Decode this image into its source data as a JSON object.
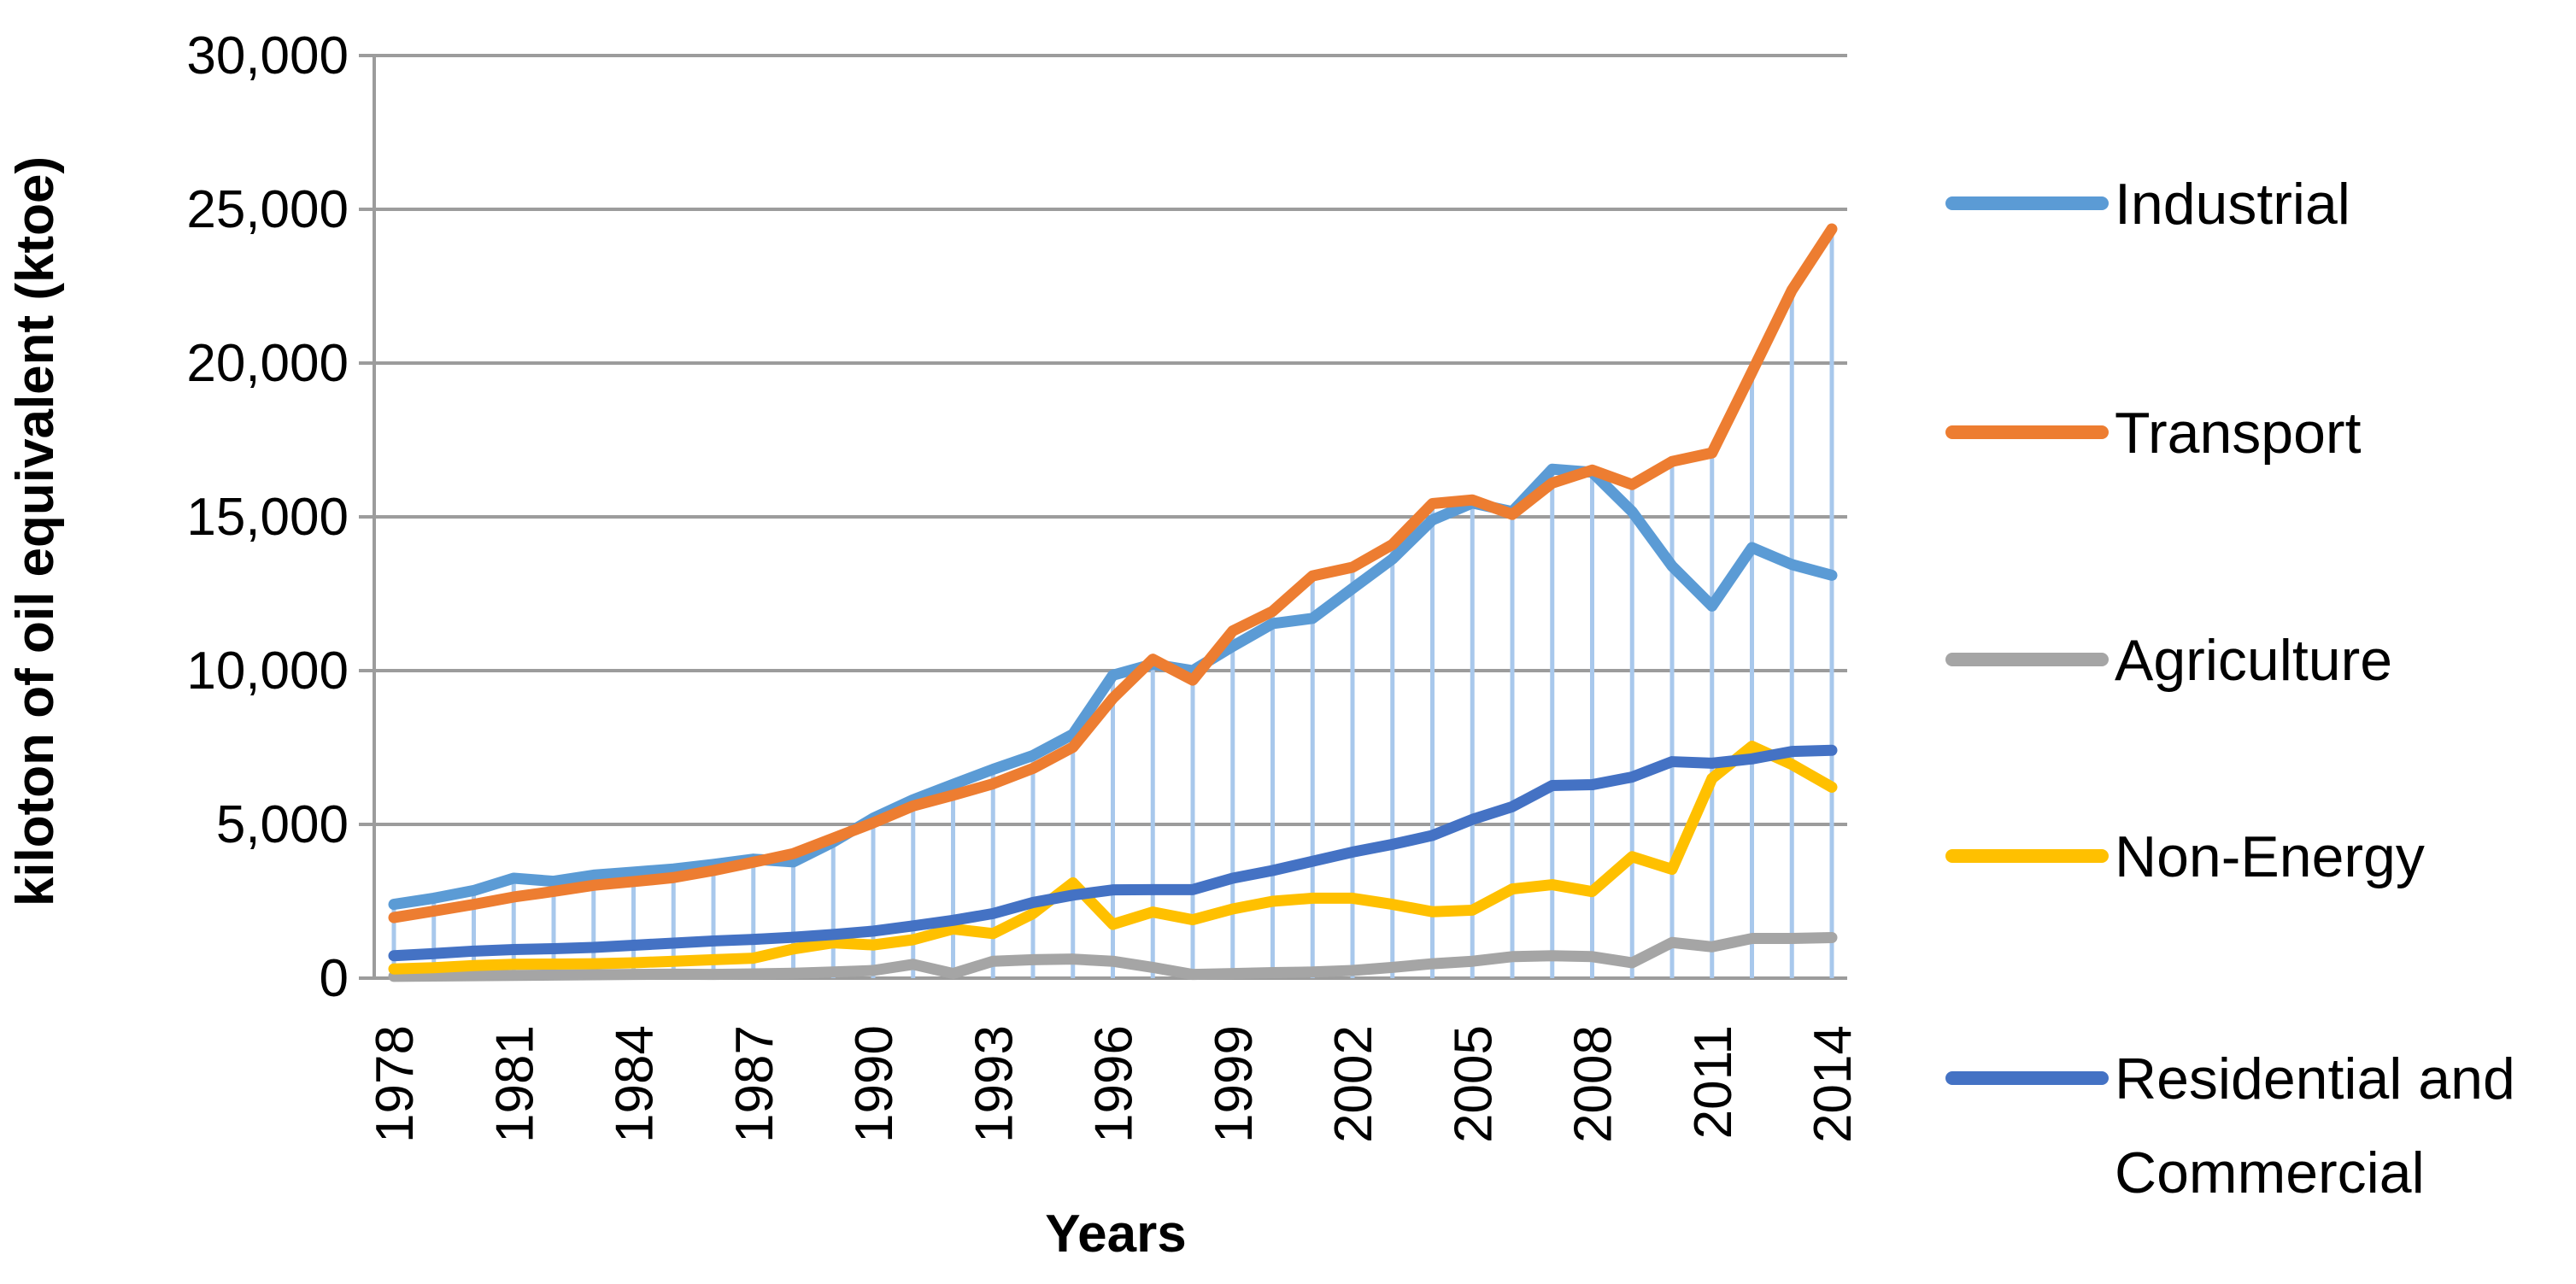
{
  "chart_data": {
    "type": "line",
    "title": "",
    "xlabel": "Years",
    "ylabel": "kiloton of oil equivalent (ktoe)",
    "ylim": [
      0,
      30000
    ],
    "y_tick_step": 5000,
    "y_tick_labels": [
      "30,000",
      "25,000",
      "20,000",
      "15,000",
      "10,000",
      "5,000",
      "0"
    ],
    "y_tick_values": [
      30000,
      25000,
      20000,
      15000,
      10000,
      5000,
      0
    ],
    "x_tick_labels": [
      "1978",
      "1981",
      "1984",
      "1987",
      "1990",
      "1993",
      "1996",
      "1999",
      "2002",
      "2005",
      "2008",
      "2011",
      "2014"
    ],
    "x_years": [
      1978,
      1979,
      1980,
      1981,
      1982,
      1983,
      1984,
      1985,
      1986,
      1987,
      1988,
      1989,
      1990,
      1991,
      1992,
      1993,
      1994,
      1995,
      1996,
      1997,
      1998,
      1999,
      2000,
      2001,
      2002,
      2003,
      2004,
      2005,
      2006,
      2007,
      2008,
      2009,
      2010,
      2011,
      2012,
      2013,
      2014
    ],
    "grid": true,
    "legend_position": "right",
    "drop_lines": true,
    "series": [
      {
        "name": "Industrial",
        "legend_lines": [
          "Industrial"
        ],
        "color": "#5B9BD5",
        "values": [
          2400,
          2600,
          2850,
          3250,
          3150,
          3350,
          3450,
          3550,
          3700,
          3870,
          3780,
          4430,
          5200,
          5800,
          6300,
          6790,
          7240,
          7930,
          9850,
          10210,
          10000,
          10790,
          11530,
          11700,
          12670,
          13630,
          14900,
          15450,
          15170,
          16550,
          16450,
          15170,
          13400,
          12100,
          14000,
          13450,
          13100
        ]
      },
      {
        "name": "Transport",
        "legend_lines": [
          "Transport"
        ],
        "color": "#ED7D31",
        "values": [
          1970,
          2180,
          2400,
          2640,
          2820,
          3020,
          3140,
          3270,
          3500,
          3770,
          4050,
          4550,
          5050,
          5600,
          5950,
          6320,
          6820,
          7510,
          9100,
          10370,
          9690,
          11290,
          11930,
          13080,
          13360,
          14100,
          15430,
          15550,
          15080,
          16100,
          16520,
          16050,
          16800,
          17080,
          19710,
          22370,
          24360
        ]
      },
      {
        "name": "Agriculture",
        "legend_lines": [
          "Agriculture"
        ],
        "color": "#A5A5A5",
        "values": [
          60,
          70,
          80,
          90,
          100,
          110,
          120,
          130,
          120,
          140,
          160,
          200,
          250,
          450,
          150,
          550,
          600,
          620,
          550,
          350,
          120,
          150,
          180,
          200,
          250,
          350,
          470,
          550,
          700,
          730,
          700,
          500,
          1160,
          1020,
          1290,
          1290,
          1320
        ]
      },
      {
        "name": "Non-Energy",
        "legend_lines": [
          "Non-Energy"
        ],
        "color": "#FFC000",
        "values": [
          300,
          340,
          410,
          450,
          460,
          470,
          500,
          550,
          600,
          650,
          950,
          1150,
          1080,
          1250,
          1600,
          1450,
          2100,
          3100,
          1750,
          2150,
          1900,
          2250,
          2500,
          2600,
          2600,
          2400,
          2160,
          2210,
          2900,
          3040,
          2815,
          3950,
          3540,
          6490,
          7540,
          6950,
          6210
        ]
      },
      {
        "name": "Residential and Commercial",
        "legend_lines": [
          "Residential and",
          "Commercial"
        ],
        "color": "#4472C4",
        "values": [
          730,
          800,
          880,
          930,
          960,
          1000,
          1070,
          1140,
          1210,
          1260,
          1330,
          1420,
          1530,
          1700,
          1880,
          2100,
          2460,
          2700,
          2870,
          2880,
          2880,
          3250,
          3500,
          3800,
          4100,
          4350,
          4640,
          5160,
          5575,
          6265,
          6290,
          6540,
          7040,
          6990,
          7130,
          7370,
          7410
        ]
      }
    ],
    "style_colors": {
      "gridline": "#9C9C9C",
      "axis_line": "#9C9C9C",
      "drop_line": "#A8C8EC",
      "text": "#000000",
      "background": "#FFFFFF"
    }
  }
}
